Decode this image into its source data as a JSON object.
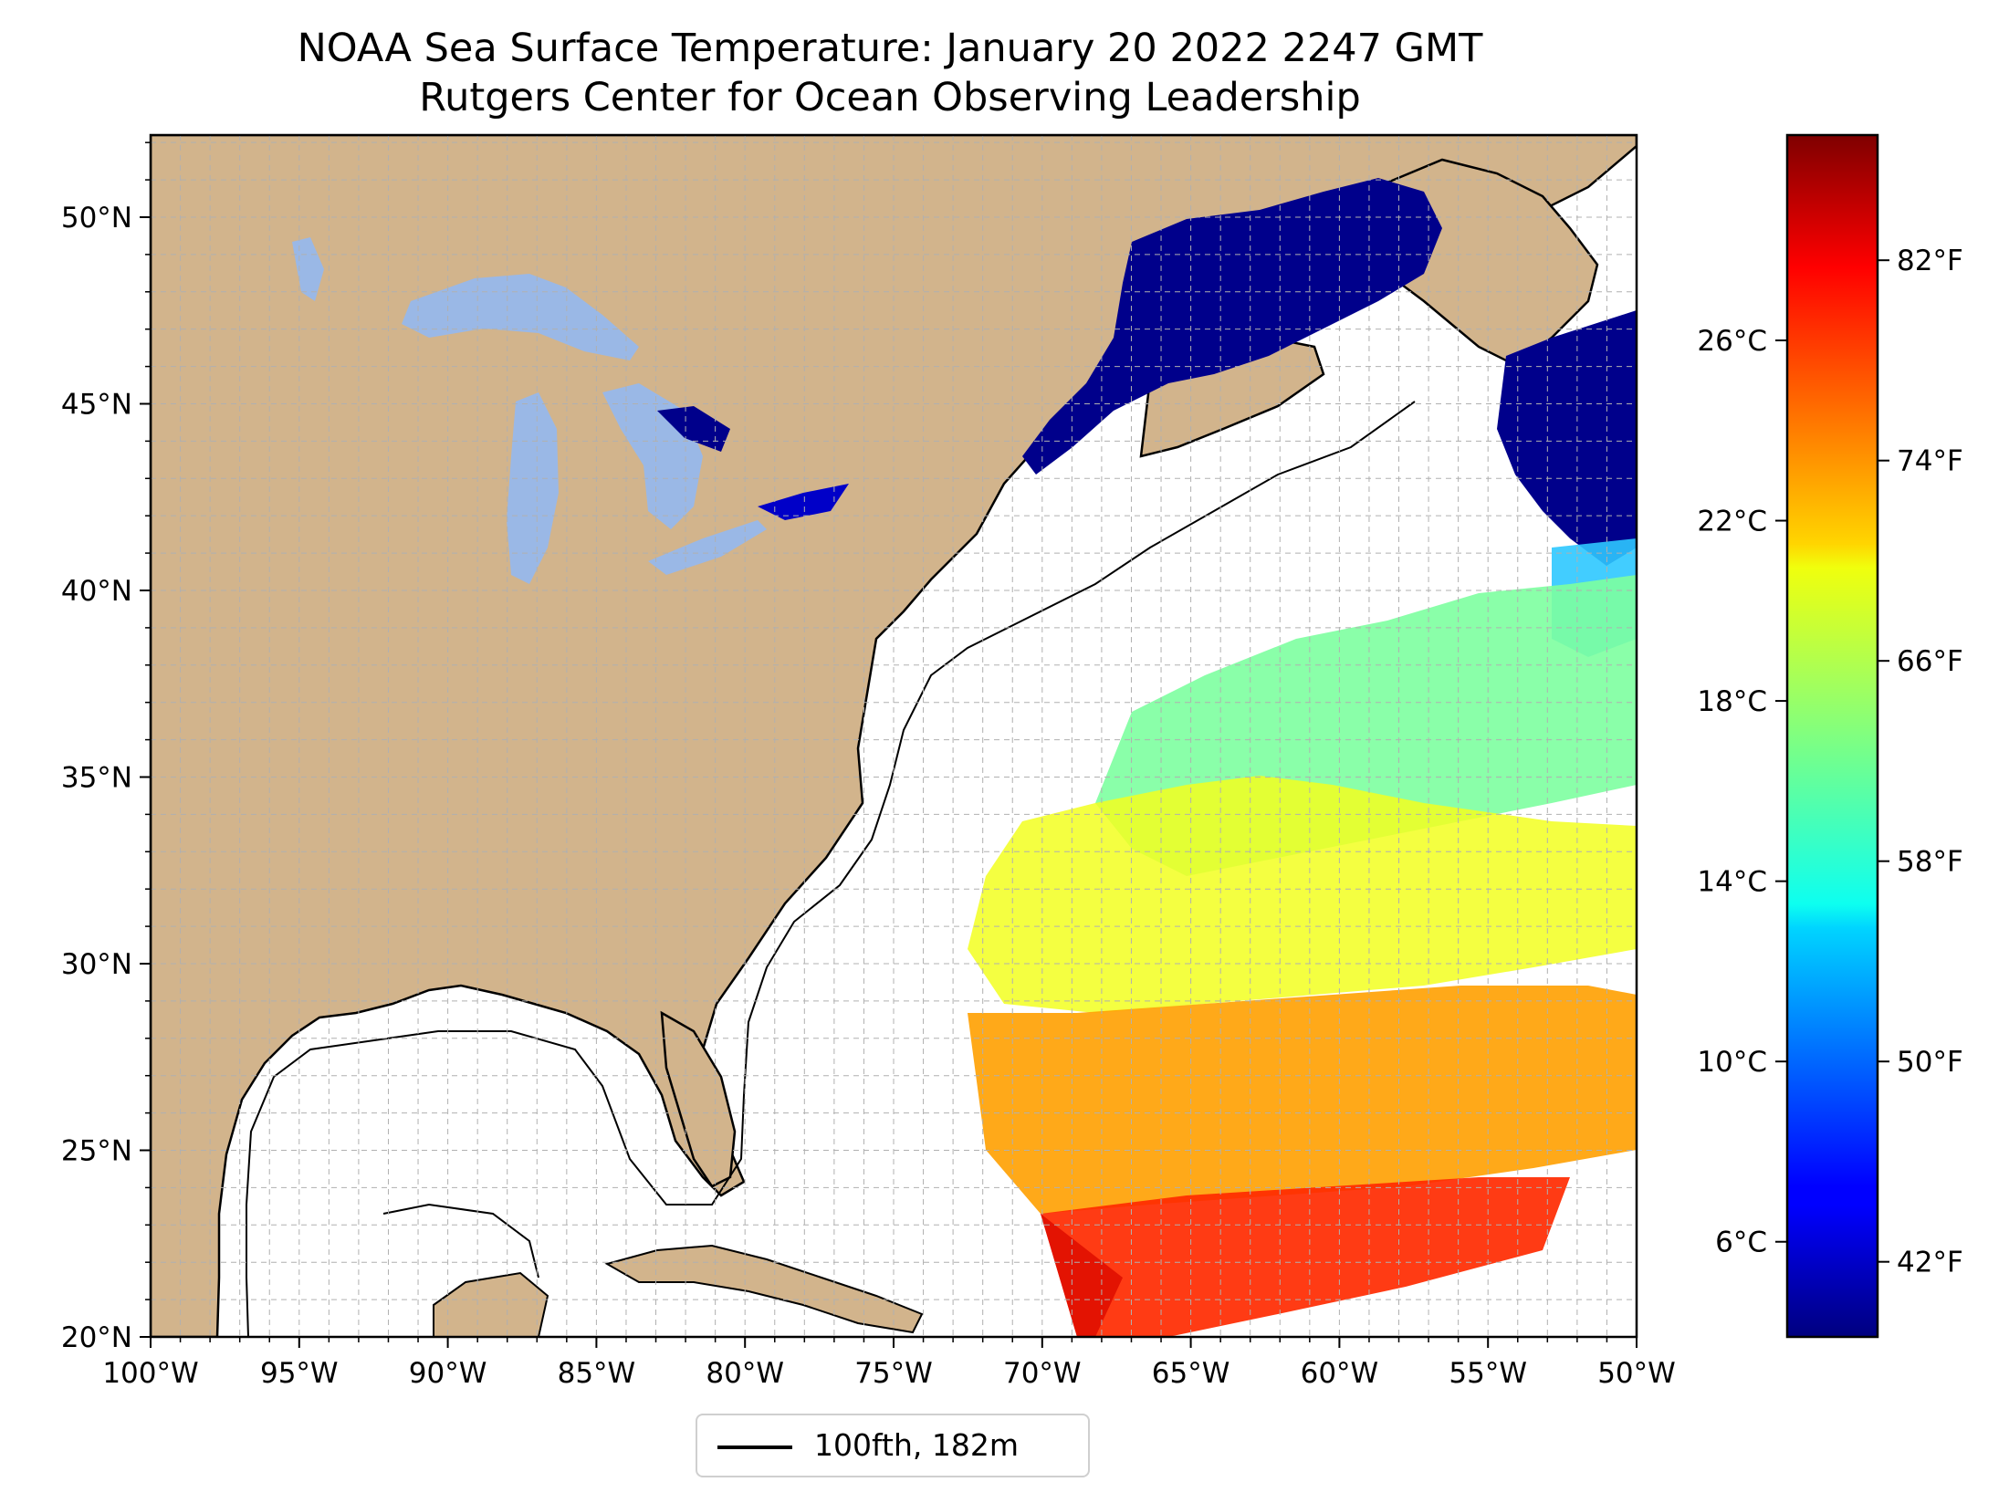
{
  "title": {
    "line1": "NOAA Sea Surface Temperature: January 20 2022 2247 GMT",
    "line2": "Rutgers Center for Ocean Observing Leadership"
  },
  "map": {
    "lon_range": [
      -100,
      -50
    ],
    "lat_range": [
      20,
      52.2
    ],
    "lon_ticks": [
      {
        "value": -100,
        "label": "100°W"
      },
      {
        "value": -95,
        "label": "95°W"
      },
      {
        "value": -90,
        "label": "90°W"
      },
      {
        "value": -85,
        "label": "85°W"
      },
      {
        "value": -80,
        "label": "80°W"
      },
      {
        "value": -75,
        "label": "75°W"
      },
      {
        "value": -70,
        "label": "70°W"
      },
      {
        "value": -65,
        "label": "65°W"
      },
      {
        "value": -60,
        "label": "60°W"
      },
      {
        "value": -55,
        "label": "55°W"
      },
      {
        "value": -50,
        "label": "50°W"
      }
    ],
    "lat_ticks": [
      {
        "value": 20,
        "label": "20°N"
      },
      {
        "value": 25,
        "label": "25°N"
      },
      {
        "value": 30,
        "label": "30°N"
      },
      {
        "value": 35,
        "label": "35°N"
      },
      {
        "value": 40,
        "label": "40°N"
      },
      {
        "value": 45,
        "label": "45°N"
      },
      {
        "value": 50,
        "label": "50°N"
      }
    ],
    "grid": "dashed, every 1 degree",
    "colors": {
      "land": "#d2b48c",
      "lakes": "#9ab8e6",
      "ocean": "#ffffff",
      "coastline": "#000000"
    }
  },
  "colorbar": {
    "colormap": "jet",
    "range_f": [
      39,
      87
    ],
    "celsius_ticks": [
      {
        "value": 6,
        "label": "6°C"
      },
      {
        "value": 10,
        "label": "10°C"
      },
      {
        "value": 14,
        "label": "14°C"
      },
      {
        "value": 18,
        "label": "18°C"
      },
      {
        "value": 22,
        "label": "22°C"
      },
      {
        "value": 26,
        "label": "26°C"
      }
    ],
    "fahrenheit_ticks": [
      {
        "value": 42,
        "label": "42°F"
      },
      {
        "value": 50,
        "label": "50°F"
      },
      {
        "value": 58,
        "label": "58°F"
      },
      {
        "value": 66,
        "label": "66°F"
      },
      {
        "value": 74,
        "label": "74°F"
      },
      {
        "value": 82,
        "label": "82°F"
      }
    ]
  },
  "legend": {
    "label": "100fth, 182m",
    "line_color": "#000000"
  }
}
